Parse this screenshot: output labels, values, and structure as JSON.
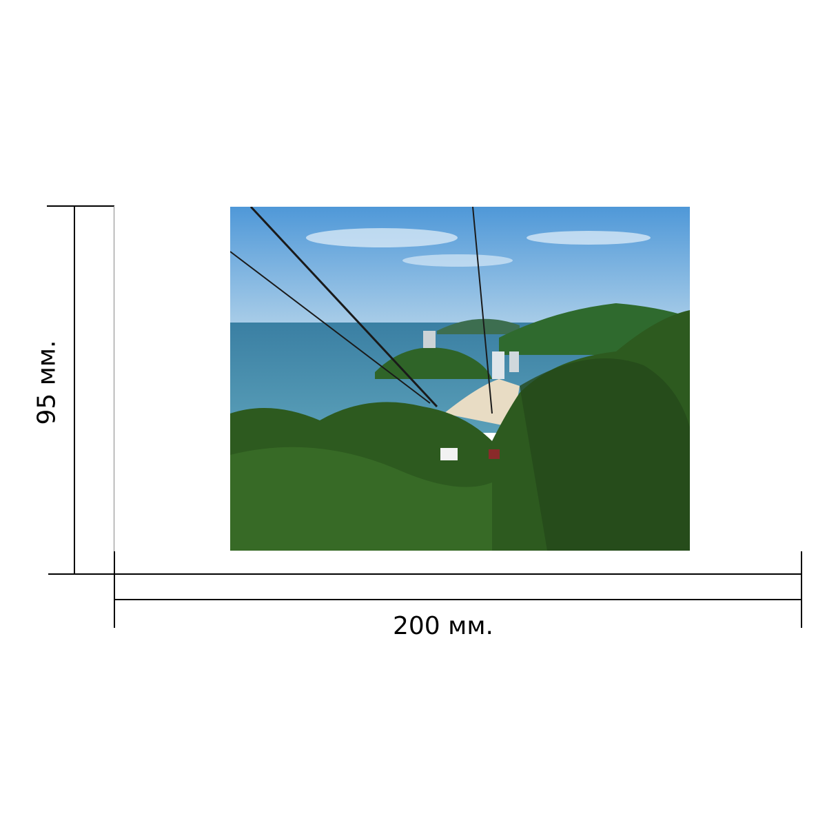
{
  "dimensions": {
    "width_label": "200 мм.",
    "height_label": "95 мм."
  },
  "photo": {
    "subject": "cable-car-over-tropical-coast",
    "colors": {
      "sky": "#5ea3dc",
      "sea": "#3f87a8",
      "forest": "#2f5e22"
    }
  }
}
